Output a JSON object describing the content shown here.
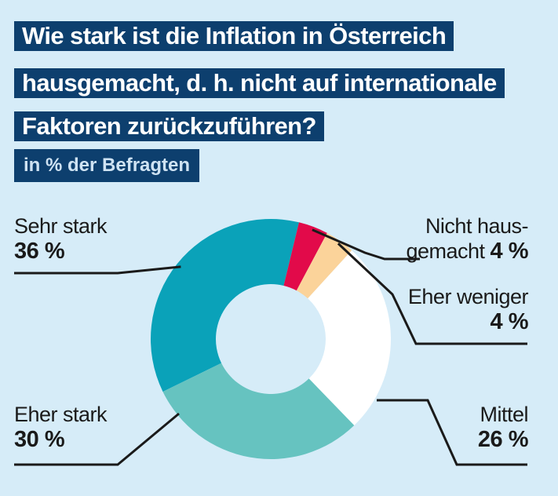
{
  "title_lines": [
    "Wie stark ist die Inflation in Österreich",
    "hausgemacht, d. h. nicht auf internationale",
    "Faktoren zurückzuführen?"
  ],
  "subtitle": "in % der Befragten",
  "colors": {
    "background": "#d6ecf8",
    "title_box": "#0d3f6e"
  },
  "chart_data": {
    "type": "pie",
    "variant": "donut",
    "title": "Wie stark ist die Inflation in Österreich hausgemacht, d. h. nicht auf internationale Faktoren zurückzuführen?",
    "subtitle": "in % der Befragten",
    "categories": [
      "Sehr stark",
      "Nicht hausgemacht",
      "Eher weniger",
      "Mittel",
      "Eher stark"
    ],
    "values": [
      36,
      4,
      4,
      26,
      30
    ],
    "colors": [
      "#0aa2b9",
      "#e20a4a",
      "#fbd39a",
      "#ffffff",
      "#66c3c0"
    ],
    "labels": [
      {
        "name_lines": [
          "Sehr stark"
        ],
        "pct": "36 %"
      },
      {
        "name_lines": [
          "Nicht haus-",
          "gemacht"
        ],
        "pct": "4 %"
      },
      {
        "name_lines": [
          "Eher weniger"
        ],
        "pct": "4 %"
      },
      {
        "name_lines": [
          "Mittel"
        ],
        "pct": "26 %"
      },
      {
        "name_lines": [
          "Eher stark"
        ],
        "pct": "30 %"
      }
    ]
  }
}
